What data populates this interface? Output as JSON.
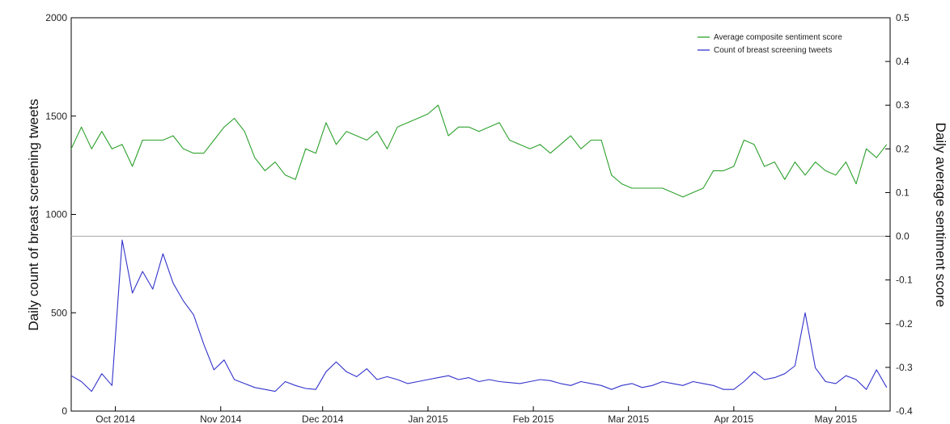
{
  "chart_data": {
    "type": "line",
    "title": "",
    "ylabel_left": "Daily count of breast screening tweets",
    "ylabel_right": "Daily average sentiment score",
    "ylim_left": [
      0,
      2000
    ],
    "ylim_right": [
      -0.4,
      0.5
    ],
    "yticks_left": [
      "0",
      "500",
      "1000",
      "1500",
      "2000"
    ],
    "yticks_right": [
      "-0.4",
      "-0.3",
      "-0.2",
      "-0.1",
      "0.0",
      "0.1",
      "0.2",
      "0.3",
      "0.4",
      "0.5"
    ],
    "xlim": [
      "2014-09-18",
      "2015-05-17"
    ],
    "xticks": [
      {
        "label": "Oct 2014",
        "date": "2014-10-01"
      },
      {
        "label": "Nov 2014",
        "date": "2014-11-01"
      },
      {
        "label": "Dec 2014",
        "date": "2014-12-01"
      },
      {
        "label": "Jan 2015",
        "date": "2015-01-01"
      },
      {
        "label": "Feb 2015",
        "date": "2015-02-01"
      },
      {
        "label": "Mar 2015",
        "date": "2015-03-01"
      },
      {
        "label": "Apr 2015",
        "date": "2015-04-01"
      },
      {
        "label": "May 2015",
        "date": "2015-05-01"
      }
    ],
    "reference_line": {
      "axis": "right",
      "y": 0.0,
      "color": "#aaaaaa"
    },
    "legend": {
      "placement": "top-right"
    },
    "series": [
      {
        "name": "Average composite sentiment score",
        "axis": "right",
        "color": "#2ca02c",
        "points": [
          [
            "2014-09-18",
            0.2
          ],
          [
            "2014-09-21",
            0.25
          ],
          [
            "2014-09-24",
            0.2
          ],
          [
            "2014-09-27",
            0.24
          ],
          [
            "2014-09-30",
            0.2
          ],
          [
            "2014-10-03",
            0.21
          ],
          [
            "2014-10-06",
            0.16
          ],
          [
            "2014-10-09",
            0.22
          ],
          [
            "2014-10-12",
            0.22
          ],
          [
            "2014-10-15",
            0.22
          ],
          [
            "2014-10-18",
            0.23
          ],
          [
            "2014-10-21",
            0.2
          ],
          [
            "2014-10-24",
            0.19
          ],
          [
            "2014-10-27",
            0.19
          ],
          [
            "2014-10-30",
            0.22
          ],
          [
            "2014-11-02",
            0.25
          ],
          [
            "2014-11-05",
            0.27
          ],
          [
            "2014-11-08",
            0.24
          ],
          [
            "2014-11-11",
            0.18
          ],
          [
            "2014-11-14",
            0.15
          ],
          [
            "2014-11-17",
            0.17
          ],
          [
            "2014-11-20",
            0.14
          ],
          [
            "2014-11-23",
            0.13
          ],
          [
            "2014-11-26",
            0.2
          ],
          [
            "2014-11-29",
            0.19
          ],
          [
            "2014-12-02",
            0.26
          ],
          [
            "2014-12-05",
            0.21
          ],
          [
            "2014-12-08",
            0.24
          ],
          [
            "2014-12-11",
            0.23
          ],
          [
            "2014-12-14",
            0.22
          ],
          [
            "2014-12-17",
            0.24
          ],
          [
            "2014-12-20",
            0.2
          ],
          [
            "2014-12-23",
            0.25
          ],
          [
            "2014-12-26",
            0.26
          ],
          [
            "2014-12-29",
            0.27
          ],
          [
            "2015-01-01",
            0.28
          ],
          [
            "2015-01-04",
            0.3
          ],
          [
            "2015-01-07",
            0.23
          ],
          [
            "2015-01-10",
            0.25
          ],
          [
            "2015-01-13",
            0.25
          ],
          [
            "2015-01-16",
            0.24
          ],
          [
            "2015-01-19",
            0.25
          ],
          [
            "2015-01-22",
            0.26
          ],
          [
            "2015-01-25",
            0.22
          ],
          [
            "2015-01-28",
            0.21
          ],
          [
            "2015-01-31",
            0.2
          ],
          [
            "2015-02-03",
            0.21
          ],
          [
            "2015-02-06",
            0.19
          ],
          [
            "2015-02-09",
            0.21
          ],
          [
            "2015-02-12",
            0.23
          ],
          [
            "2015-02-15",
            0.2
          ],
          [
            "2015-02-18",
            0.22
          ],
          [
            "2015-02-21",
            0.22
          ],
          [
            "2015-02-24",
            0.14
          ],
          [
            "2015-02-27",
            0.12
          ],
          [
            "2015-03-02",
            0.11
          ],
          [
            "2015-03-05",
            0.11
          ],
          [
            "2015-03-08",
            0.11
          ],
          [
            "2015-03-11",
            0.11
          ],
          [
            "2015-03-14",
            0.1
          ],
          [
            "2015-03-17",
            0.09
          ],
          [
            "2015-03-20",
            0.1
          ],
          [
            "2015-03-23",
            0.11
          ],
          [
            "2015-03-26",
            0.15
          ],
          [
            "2015-03-29",
            0.15
          ],
          [
            "2015-04-01",
            0.16
          ],
          [
            "2015-04-04",
            0.22
          ],
          [
            "2015-04-07",
            0.21
          ],
          [
            "2015-04-10",
            0.16
          ],
          [
            "2015-04-13",
            0.17
          ],
          [
            "2015-04-16",
            0.13
          ],
          [
            "2015-04-19",
            0.17
          ],
          [
            "2015-04-22",
            0.14
          ],
          [
            "2015-04-25",
            0.17
          ],
          [
            "2015-04-28",
            0.15
          ],
          [
            "2015-05-01",
            0.14
          ],
          [
            "2015-05-04",
            0.17
          ],
          [
            "2015-05-07",
            0.12
          ],
          [
            "2015-05-10",
            0.2
          ],
          [
            "2015-05-13",
            0.18
          ],
          [
            "2015-05-16",
            0.21
          ]
        ]
      },
      {
        "name": "Count of breast screening tweets",
        "axis": "left",
        "color": "#3333cc",
        "points": [
          [
            "2014-09-18",
            180
          ],
          [
            "2014-09-21",
            150
          ],
          [
            "2014-09-24",
            100
          ],
          [
            "2014-09-27",
            190
          ],
          [
            "2014-09-30",
            130
          ],
          [
            "2014-10-03",
            870
          ],
          [
            "2014-10-06",
            600
          ],
          [
            "2014-10-09",
            710
          ],
          [
            "2014-10-12",
            620
          ],
          [
            "2014-10-15",
            800
          ],
          [
            "2014-10-18",
            650
          ],
          [
            "2014-10-21",
            560
          ],
          [
            "2014-10-24",
            490
          ],
          [
            "2014-10-27",
            340
          ],
          [
            "2014-10-30",
            210
          ],
          [
            "2014-11-02",
            260
          ],
          [
            "2014-11-05",
            160
          ],
          [
            "2014-11-08",
            140
          ],
          [
            "2014-11-11",
            120
          ],
          [
            "2014-11-14",
            110
          ],
          [
            "2014-11-17",
            100
          ],
          [
            "2014-11-20",
            150
          ],
          [
            "2014-11-23",
            130
          ],
          [
            "2014-11-26",
            115
          ],
          [
            "2014-11-29",
            110
          ],
          [
            "2014-12-02",
            200
          ],
          [
            "2014-12-05",
            250
          ],
          [
            "2014-12-08",
            200
          ],
          [
            "2014-12-11",
            175
          ],
          [
            "2014-12-14",
            215
          ],
          [
            "2014-12-17",
            160
          ],
          [
            "2014-12-20",
            175
          ],
          [
            "2014-12-23",
            160
          ],
          [
            "2014-12-26",
            140
          ],
          [
            "2014-12-29",
            150
          ],
          [
            "2015-01-01",
            160
          ],
          [
            "2015-01-04",
            170
          ],
          [
            "2015-01-07",
            180
          ],
          [
            "2015-01-10",
            160
          ],
          [
            "2015-01-13",
            170
          ],
          [
            "2015-01-16",
            150
          ],
          [
            "2015-01-19",
            160
          ],
          [
            "2015-01-22",
            150
          ],
          [
            "2015-01-25",
            145
          ],
          [
            "2015-01-28",
            140
          ],
          [
            "2015-01-31",
            150
          ],
          [
            "2015-02-03",
            160
          ],
          [
            "2015-02-06",
            155
          ],
          [
            "2015-02-09",
            140
          ],
          [
            "2015-02-12",
            130
          ],
          [
            "2015-02-15",
            150
          ],
          [
            "2015-02-18",
            140
          ],
          [
            "2015-02-21",
            130
          ],
          [
            "2015-02-24",
            110
          ],
          [
            "2015-02-27",
            130
          ],
          [
            "2015-03-02",
            140
          ],
          [
            "2015-03-05",
            120
          ],
          [
            "2015-03-08",
            130
          ],
          [
            "2015-03-11",
            150
          ],
          [
            "2015-03-14",
            140
          ],
          [
            "2015-03-17",
            130
          ],
          [
            "2015-03-20",
            150
          ],
          [
            "2015-03-23",
            140
          ],
          [
            "2015-03-26",
            130
          ],
          [
            "2015-03-29",
            110
          ],
          [
            "2015-04-01",
            110
          ],
          [
            "2015-04-04",
            150
          ],
          [
            "2015-04-07",
            200
          ],
          [
            "2015-04-10",
            160
          ],
          [
            "2015-04-13",
            170
          ],
          [
            "2015-04-16",
            190
          ],
          [
            "2015-04-19",
            230
          ],
          [
            "2015-04-22",
            500
          ],
          [
            "2015-04-25",
            220
          ],
          [
            "2015-04-28",
            150
          ],
          [
            "2015-05-01",
            140
          ],
          [
            "2015-05-04",
            180
          ],
          [
            "2015-05-07",
            160
          ],
          [
            "2015-05-10",
            110
          ],
          [
            "2015-05-13",
            210
          ],
          [
            "2015-05-16",
            120
          ]
        ]
      }
    ]
  }
}
